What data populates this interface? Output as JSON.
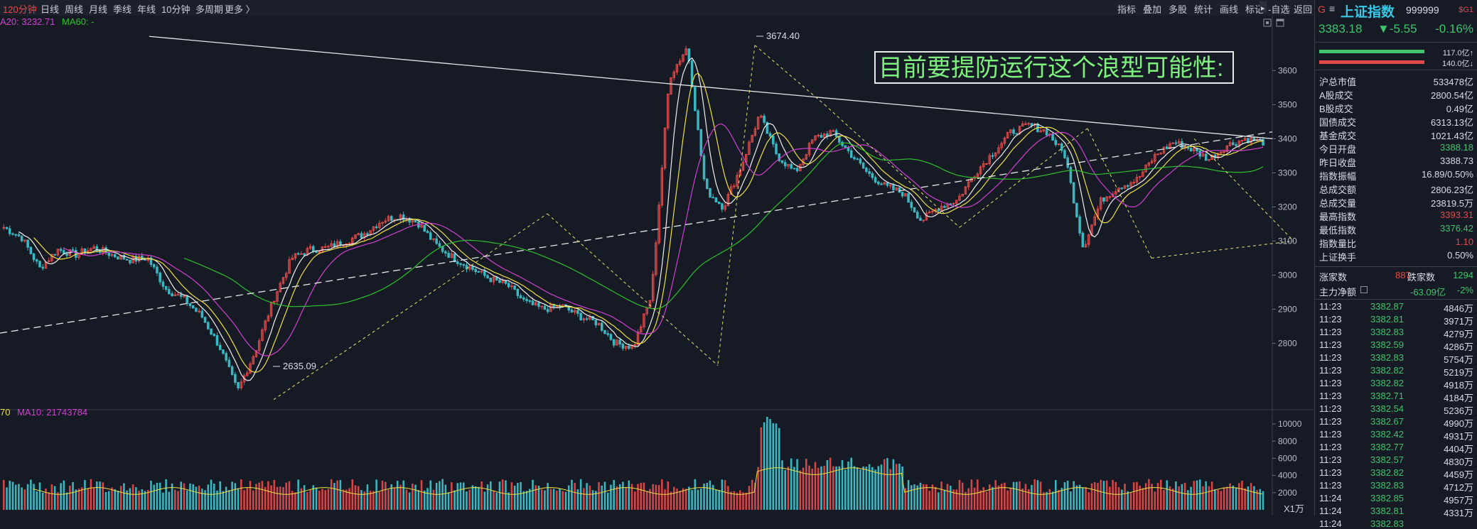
{
  "toolbar": {
    "periods": [
      "120分钟",
      "日线",
      "周线",
      "月线",
      "季线",
      "年线",
      "10分钟",
      "多周期",
      "更多 〉"
    ],
    "active_period": "120分钟",
    "right_tools": [
      "指标",
      "叠加",
      "多股",
      "统计",
      "画线",
      "标记",
      "-自选",
      "返回"
    ]
  },
  "indicators": {
    "ma20_label": "A20: 3232.71",
    "ma60_label": "MA60: -",
    "vol_prefix": "70",
    "ma10_vol_label": "MA10: 21743784",
    "vol_unit_label": "X1万"
  },
  "annotation": {
    "text": "目前要提防运行这个浪型可能性:",
    "high_label": "3674.40",
    "low_label": "2635.09"
  },
  "colors": {
    "up": "#e24a4a",
    "down": "#3ec46d",
    "title": "#39c7e6",
    "ma5": "#f0f0f0",
    "ma10": "#f0e040",
    "ma20": "#d040d0",
    "ma60": "#2cc02c",
    "vol_up": "#d84545",
    "vol_down": "#3ab8c2"
  },
  "chart_data": {
    "type": "line",
    "price_axis_ticks": [
      "3600",
      "3500",
      "3400",
      "3300",
      "3200",
      "3100",
      "3000",
      "2900",
      "2800"
    ],
    "price_ylim": [
      2620,
      3740
    ],
    "volume_axis_ticks": [
      "10000",
      "8000",
      "6000",
      "4000",
      "2000"
    ],
    "volume_ylim": [
      0,
      11000
    ],
    "series": [
      {
        "values": [
          3140,
          3110,
          3020,
          3075,
          3060,
          3080,
          3060,
          3045,
          3050,
          2960,
          2930,
          2880,
          2790,
          2660,
          2780,
          2930,
          3050,
          3075,
          3080,
          3100,
          3120,
          3160,
          3175,
          3155,
          3090,
          3050,
          3020,
          2990,
          2970,
          2920,
          2900,
          2910,
          2880,
          2860,
          2800,
          2790,
          2940,
          3580,
          3670,
          3250,
          3200,
          3320,
          3470,
          3350,
          3300,
          3400,
          3420,
          3360,
          3300,
          3260,
          3240,
          3160,
          3200,
          3220,
          3300,
          3360,
          3420,
          3440,
          3420,
          3350,
          3080,
          3220,
          3260,
          3280,
          3350,
          3390,
          3370,
          3340,
          3380,
          3400,
          3390
        ]
      }
    ]
  },
  "quote_panel": {
    "prefix": "G",
    "title": "上证指数",
    "code": "999999",
    "badge": "$G1",
    "price": "3383.18",
    "change": "▼-5.55",
    "change_pct": "-0.16%",
    "bar_up_value": "117.0亿↑",
    "bar_down_value": "140.0亿↓",
    "stats": [
      {
        "label": "沪总市值",
        "value": "533478亿",
        "color": "#d8dce6"
      },
      {
        "label": "A股成交",
        "value": "2800.54亿",
        "color": "#d8dce6"
      },
      {
        "label": "B股成交",
        "value": "0.49亿",
        "color": "#d8dce6"
      },
      {
        "label": "国债成交",
        "value": "6313.13亿",
        "color": "#d8dce6"
      },
      {
        "label": "基金成交",
        "value": "1021.43亿",
        "color": "#d8dce6"
      },
      {
        "label": "今日开盘",
        "value": "3388.18",
        "color": "#3ec46d"
      },
      {
        "label": "昨日收盘",
        "value": "3388.73",
        "color": "#d8dce6"
      },
      {
        "label": "指数振幅",
        "value": "16.89/0.50%",
        "color": "#d8dce6"
      },
      {
        "label": "总成交额",
        "value": "2806.23亿",
        "color": "#d8dce6"
      },
      {
        "label": "总成交量",
        "value": "23819.5万",
        "color": "#d8dce6"
      },
      {
        "label": "最高指数",
        "value": "3393.31",
        "color": "#e24a4a"
      },
      {
        "label": "最低指数",
        "value": "3376.42",
        "color": "#3ec46d"
      },
      {
        "label": "指数量比",
        "value": "1.10",
        "color": "#e24a4a"
      },
      {
        "label": "上证换手",
        "value": "0.50%",
        "color": "#d8dce6"
      }
    ],
    "rise_label": "涨家数",
    "rise_count": "887",
    "fall_label": "跌家数",
    "fall_count": "1294",
    "netflow_label": "主力净额",
    "netflow_value": "-63.09亿",
    "netflow_pct": "-2%",
    "ticks": [
      {
        "time": "11:23",
        "price": "3382.87",
        "vol": "4846万"
      },
      {
        "time": "11:23",
        "price": "3382.81",
        "vol": "3971万"
      },
      {
        "time": "11:23",
        "price": "3382.83",
        "vol": "4279万"
      },
      {
        "time": "11:23",
        "price": "3382.59",
        "vol": "4286万"
      },
      {
        "time": "11:23",
        "price": "3382.83",
        "vol": "5754万"
      },
      {
        "time": "11:23",
        "price": "3382.82",
        "vol": "5219万"
      },
      {
        "time": "11:23",
        "price": "3382.82",
        "vol": "4918万"
      },
      {
        "time": "11:23",
        "price": "3382.71",
        "vol": "4184万"
      },
      {
        "time": "11:23",
        "price": "3382.54",
        "vol": "5236万"
      },
      {
        "time": "11:23",
        "price": "3382.67",
        "vol": "4990万"
      },
      {
        "time": "11:23",
        "price": "3382.42",
        "vol": "4931万"
      },
      {
        "time": "11:23",
        "price": "3382.77",
        "vol": "4404万"
      },
      {
        "time": "11:23",
        "price": "3382.57",
        "vol": "4830万"
      },
      {
        "time": "11:23",
        "price": "3382.82",
        "vol": "4459万"
      },
      {
        "time": "11:23",
        "price": "3382.83",
        "vol": "4712万"
      },
      {
        "time": "11:24",
        "price": "3382.85",
        "vol": "4957万"
      },
      {
        "time": "11:24",
        "price": "3382.81",
        "vol": "4331万"
      },
      {
        "time": "11:24",
        "price": "3382.83",
        "vol": ""
      }
    ]
  }
}
